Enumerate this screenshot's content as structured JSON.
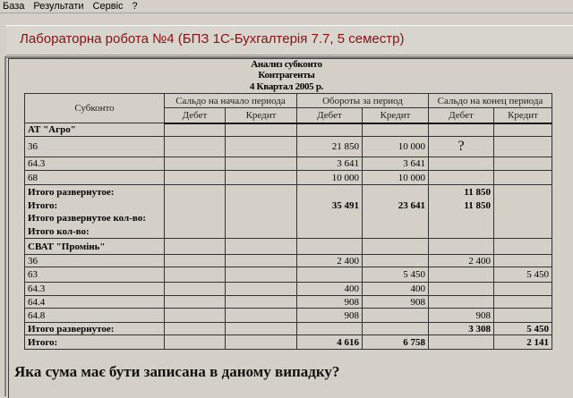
{
  "menu": [
    "База",
    "Результати",
    "Сервіс",
    "?"
  ],
  "header_title": "Лабораторна робота №4 (БПЗ 1С-Бухгалтерія 7.7, 5 семестр)",
  "report": {
    "title": "Анализ субконто",
    "subtitle": "Контрагенты",
    "period": "4 Квартал 2005 р.",
    "col_subkonto": "Субконто",
    "groups": [
      "Сальдо на начало периода",
      "Обороты за период",
      "Сальдо на конец периода"
    ],
    "sub": [
      "Дебет",
      "Кредит",
      "Дебет",
      "Кредит",
      "Дебет",
      "Кредит"
    ],
    "rows": [
      {
        "cells": [
          "АТ \"Агро\"",
          "",
          "",
          "",
          "",
          "",
          ""
        ],
        "type": "group"
      },
      {
        "cells": [
          "36",
          "",
          "",
          "21 850",
          "10 000",
          "?",
          ""
        ],
        "type": "q"
      },
      {
        "cells": [
          "64.3",
          "",
          "",
          "3 641",
          "3 641",
          "",
          ""
        ]
      },
      {
        "cells": [
          "68",
          "",
          "",
          "10 000",
          "10 000",
          "",
          ""
        ]
      },
      {
        "cells": [
          "Итого развернутое:\nИтого:\nИтого развернутое кол-во:\nИтого кол-во:",
          "",
          "",
          "\n35 491",
          "\n23 641",
          "11 850\n11 850",
          ""
        ],
        "type": "multi"
      },
      {
        "cells": [
          "СВАТ \"Промінь\"",
          "",
          "",
          "",
          "",
          "",
          ""
        ],
        "type": "group"
      },
      {
        "cells": [
          "36",
          "",
          "",
          "2 400",
          "",
          "2 400",
          ""
        ]
      },
      {
        "cells": [
          "63",
          "",
          "",
          "",
          "5 450",
          "",
          "5 450"
        ]
      },
      {
        "cells": [
          "64.3",
          "",
          "",
          "400",
          "400",
          "",
          ""
        ]
      },
      {
        "cells": [
          "64.4",
          "",
          "",
          "908",
          "908",
          "",
          ""
        ]
      },
      {
        "cells": [
          "64.8",
          "",
          "",
          "908",
          "",
          "908",
          ""
        ]
      },
      {
        "cells": [
          "Итого развернутое:",
          "",
          "",
          "",
          "",
          "3 308",
          "5 450"
        ],
        "type": "bold"
      },
      {
        "cells": [
          "Итого:",
          "",
          "",
          "4 616",
          "6 758",
          "",
          "2 141"
        ],
        "type": "bold"
      }
    ]
  },
  "question": "Яка сума має бути записана в даному випадку?"
}
